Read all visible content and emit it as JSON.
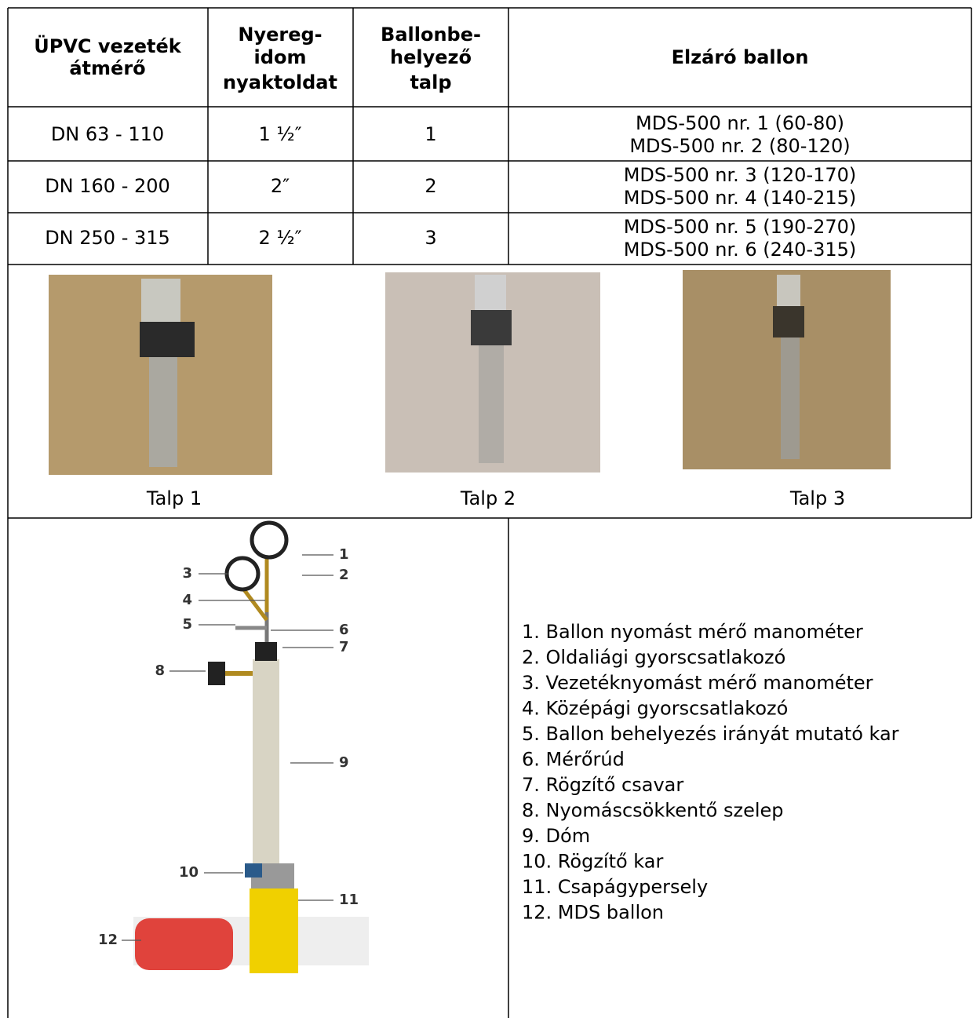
{
  "table": {
    "headers": [
      [
        "ÜPVC vezeték",
        "átmérő"
      ],
      [
        "Nyereg-",
        "idom",
        "nyaktoldat"
      ],
      [
        "Ballonbe-",
        "helyező",
        "talp"
      ],
      [
        "Elzáró ballon"
      ]
    ],
    "rows": [
      {
        "diameter": "DN 63 - 110",
        "neck": "1 ½″",
        "base": "1",
        "balloons": [
          "MDS-500 nr. 1 (60-80)",
          "MDS-500 nr. 2 (80-120)"
        ]
      },
      {
        "diameter": "DN 160 - 200",
        "neck": "2″",
        "base": "2",
        "balloons": [
          "MDS-500 nr. 3 (120-170)",
          "MDS-500 nr. 4 (140-215)"
        ]
      },
      {
        "diameter": "DN 250 - 315",
        "neck": "2 ½″",
        "base": "3",
        "balloons": [
          "MDS-500 nr. 5 (190-270)",
          "MDS-500 nr. 6 (240-315)"
        ]
      }
    ]
  },
  "photos": {
    "captions": [
      "Talp 1",
      "Talp 2",
      "Talp 3"
    ]
  },
  "diagram": {
    "callouts": [
      "1",
      "2",
      "3",
      "4",
      "5",
      "6",
      "7",
      "8",
      "9",
      "10",
      "11",
      "12"
    ],
    "legend": [
      "1. Ballon nyomást mérő manométer",
      "2. Oldaliági gyorscsatlakozó",
      "3. Vezetéknyomást mérő manométer",
      "4. Középági gyorscsatlakozó",
      "5. Ballon behelyezés irányát mutató kar",
      "6. Mérőrúd",
      "7. Rögzítő csavar",
      "8. Nyomáscsökkentő szelep",
      "9. Dóm",
      "10. Rögzítő kar",
      "11. Csapágypersely",
      "12. MDS ballon"
    ]
  }
}
